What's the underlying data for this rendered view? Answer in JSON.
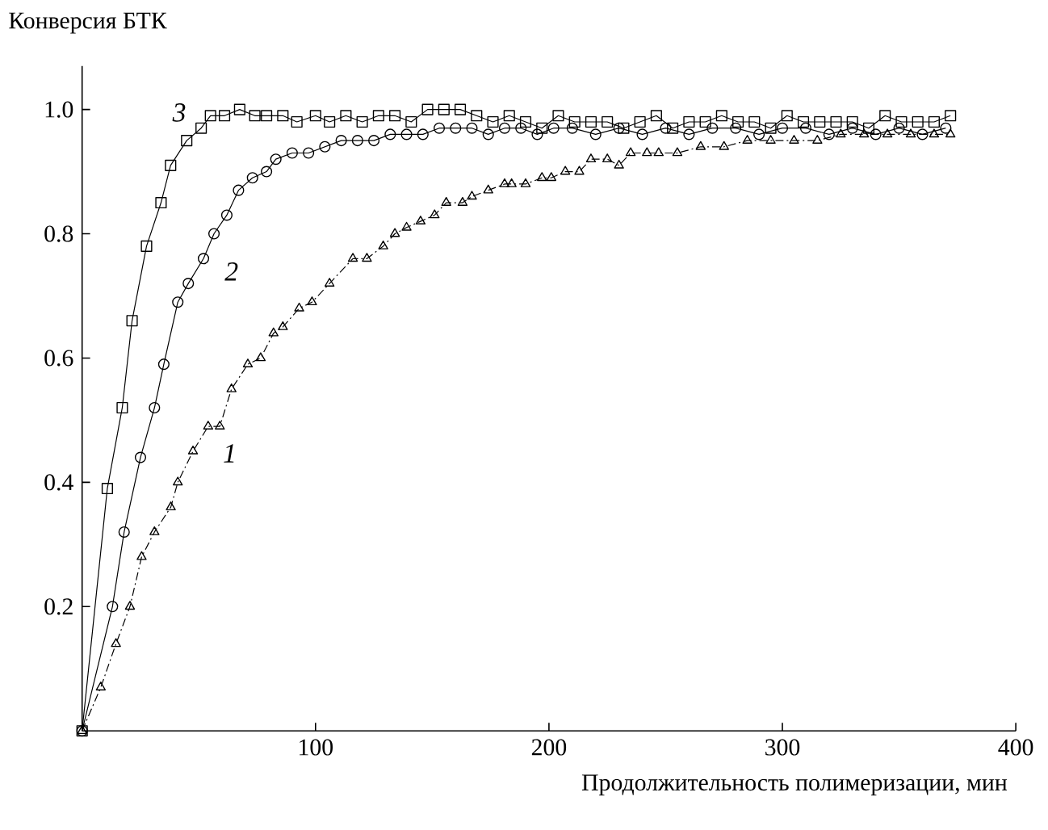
{
  "chart_data": {
    "type": "line",
    "xlabel": "Продолжительность полимеризации, мин",
    "ylabel": "Конверсия БТК",
    "xlim": [
      0,
      400
    ],
    "ylim": [
      0,
      1.07
    ],
    "xticks": [
      100,
      200,
      300,
      400
    ],
    "yticks": [
      0.2,
      0.4,
      0.6,
      0.8,
      {
        "value": 1.0,
        "label": "1.0"
      }
    ],
    "grid": false,
    "series": [
      {
        "name": "1",
        "color": "#000000",
        "marker": "triangle",
        "line_style": "dashed",
        "x": [
          0,
          8,
          14.5,
          20.5,
          25.5,
          31,
          38,
          41,
          47.5,
          54,
          59,
          64,
          71,
          76.5,
          82,
          86,
          93,
          98.5,
          106,
          116,
          122,
          129,
          134,
          139,
          145,
          151,
          156,
          163,
          167,
          174,
          181,
          184,
          190,
          197,
          201,
          207,
          213,
          218,
          225,
          230,
          235,
          242,
          247,
          255,
          265,
          275,
          285,
          295,
          305,
          315,
          325,
          335,
          345,
          355,
          365,
          372
        ],
        "values": [
          0,
          0.07,
          0.14,
          0.2,
          0.28,
          0.32,
          0.36,
          0.4,
          0.45,
          0.49,
          0.49,
          0.55,
          0.59,
          0.6,
          0.64,
          0.65,
          0.68,
          0.69,
          0.72,
          0.76,
          0.76,
          0.78,
          0.8,
          0.81,
          0.82,
          0.83,
          0.85,
          0.85,
          0.86,
          0.87,
          0.88,
          0.88,
          0.88,
          0.89,
          0.89,
          0.9,
          0.9,
          0.92,
          0.92,
          0.91,
          0.93,
          0.93,
          0.93,
          0.93,
          0.94,
          0.94,
          0.95,
          0.95,
          0.95,
          0.95,
          0.96,
          0.96,
          0.96,
          0.96,
          0.96,
          0.96
        ]
      },
      {
        "name": "2",
        "color": "#000000",
        "marker": "circle",
        "line_style": "solid",
        "x": [
          0,
          13,
          18,
          25,
          31,
          35,
          41,
          45.5,
          52,
          56.5,
          62,
          67,
          73,
          79,
          83,
          90,
          97,
          104,
          111,
          118,
          125,
          132,
          139,
          146,
          153,
          160,
          167,
          174,
          181,
          188,
          195,
          202,
          210,
          220,
          230,
          240,
          250,
          260,
          270,
          280,
          290,
          300,
          310,
          320,
          330,
          340,
          350,
          360,
          370
        ],
        "values": [
          0,
          0.2,
          0.32,
          0.44,
          0.52,
          0.59,
          0.69,
          0.72,
          0.76,
          0.8,
          0.83,
          0.87,
          0.89,
          0.9,
          0.92,
          0.93,
          0.93,
          0.94,
          0.95,
          0.95,
          0.95,
          0.96,
          0.96,
          0.96,
          0.97,
          0.97,
          0.97,
          0.96,
          0.97,
          0.97,
          0.96,
          0.97,
          0.97,
          0.96,
          0.97,
          0.96,
          0.97,
          0.96,
          0.97,
          0.97,
          0.96,
          0.97,
          0.97,
          0.96,
          0.97,
          0.96,
          0.97,
          0.96,
          0.97
        ]
      },
      {
        "name": "3",
        "color": "#000000",
        "marker": "square",
        "line_style": "solid",
        "x": [
          0,
          10.8,
          17.2,
          21.4,
          27.6,
          33.8,
          37.9,
          44.8,
          51,
          55,
          61,
          67.5,
          74,
          79,
          86,
          92,
          100,
          106,
          113,
          120,
          127,
          134,
          141,
          148,
          155,
          162,
          169,
          176,
          183,
          190,
          197,
          204,
          211,
          218,
          225,
          232,
          239,
          246,
          253,
          260,
          267,
          274,
          281,
          288,
          295,
          302,
          309,
          316,
          323,
          330,
          337,
          344,
          351,
          358,
          365,
          372
        ],
        "values": [
          0,
          0.39,
          0.52,
          0.66,
          0.78,
          0.85,
          0.91,
          0.95,
          0.97,
          0.99,
          0.99,
          1.0,
          0.99,
          0.99,
          0.99,
          0.98,
          0.99,
          0.98,
          0.99,
          0.98,
          0.99,
          0.99,
          0.98,
          1.0,
          1.0,
          1.0,
          0.99,
          0.98,
          0.99,
          0.98,
          0.97,
          0.99,
          0.98,
          0.98,
          0.98,
          0.97,
          0.98,
          0.99,
          0.97,
          0.98,
          0.98,
          0.99,
          0.98,
          0.98,
          0.97,
          0.99,
          0.98,
          0.98,
          0.98,
          0.98,
          0.97,
          0.99,
          0.98,
          0.98,
          0.98,
          0.99
        ]
      }
    ]
  }
}
